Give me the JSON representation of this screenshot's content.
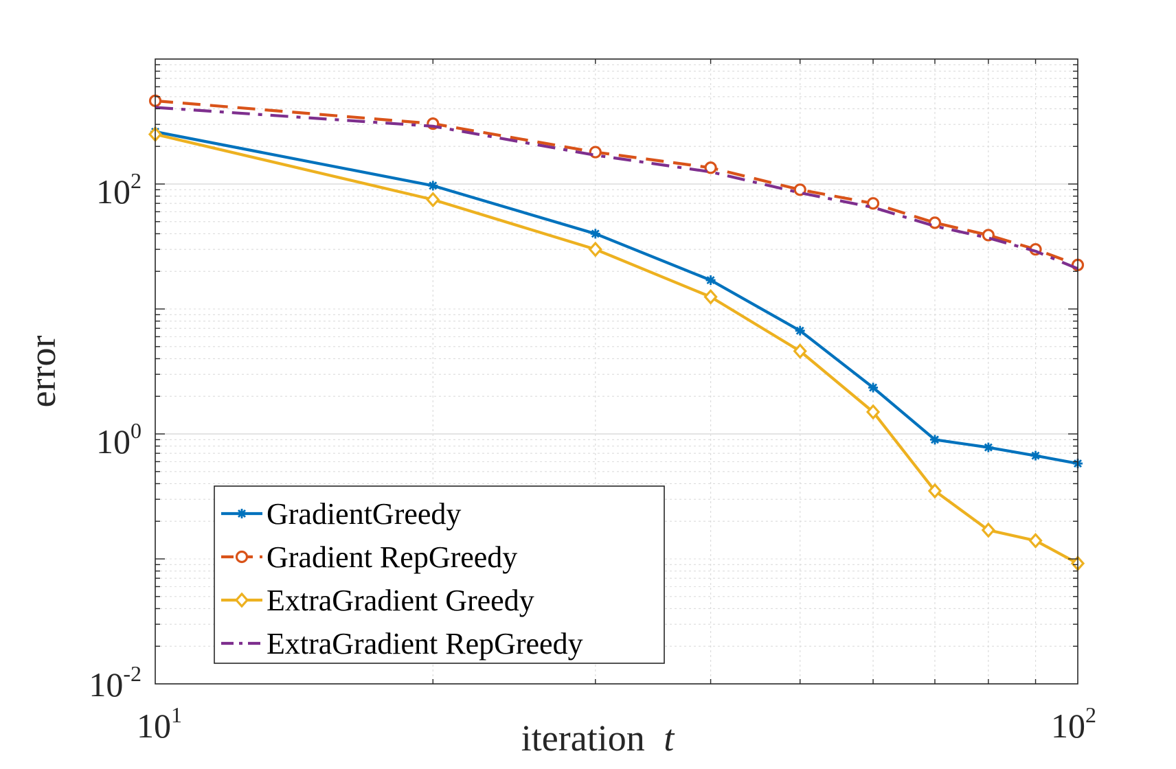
{
  "chart_data": {
    "type": "line",
    "xscale": "log",
    "yscale": "log",
    "xlim": [
      10,
      100
    ],
    "ylim": [
      0.01,
      1000
    ],
    "xlabel": "iteration",
    "xlabel_var": "t",
    "ylabel": "error",
    "grid": true,
    "minor_grid": true,
    "legend_position": "bottom-left",
    "x_ticks": [
      {
        "value": 10,
        "base": "10",
        "exp": "1"
      },
      {
        "value": 100,
        "base": "10",
        "exp": "2"
      }
    ],
    "y_ticks": [
      {
        "value": 0.01,
        "base": "10",
        "exp": "-2"
      },
      {
        "value": 1,
        "base": "10",
        "exp": "0"
      },
      {
        "value": 100,
        "base": "10",
        "exp": "2"
      }
    ],
    "x": [
      10,
      20,
      30,
      40,
      50,
      60,
      70,
      80,
      90,
      100
    ],
    "series": [
      {
        "name": "GradientGreedy",
        "color": "#0072BD",
        "dash": "solid",
        "marker": "star",
        "values": [
          262,
          97,
          40,
          17,
          6.7,
          2.35,
          0.9,
          0.78,
          0.67,
          0.58
        ]
      },
      {
        "name": "Gradient RepGreedy",
        "color": "#D95319",
        "dash": "dashed",
        "marker": "circle",
        "values": [
          463,
          304,
          180,
          135,
          90,
          70,
          49,
          39,
          30,
          22.5
        ]
      },
      {
        "name": "ExtraGradient Greedy",
        "color": "#EDB120",
        "dash": "solid",
        "marker": "diamond",
        "values": [
          250,
          75,
          30,
          12.5,
          4.6,
          1.5,
          0.35,
          0.17,
          0.14,
          0.092
        ]
      },
      {
        "name": "ExtraGradient RepGreedy",
        "color": "#7E2F8E",
        "dash": "dashdot",
        "marker": "none",
        "values": [
          410,
          290,
          170,
          125,
          85,
          65,
          46,
          37,
          29,
          21
        ]
      }
    ]
  }
}
